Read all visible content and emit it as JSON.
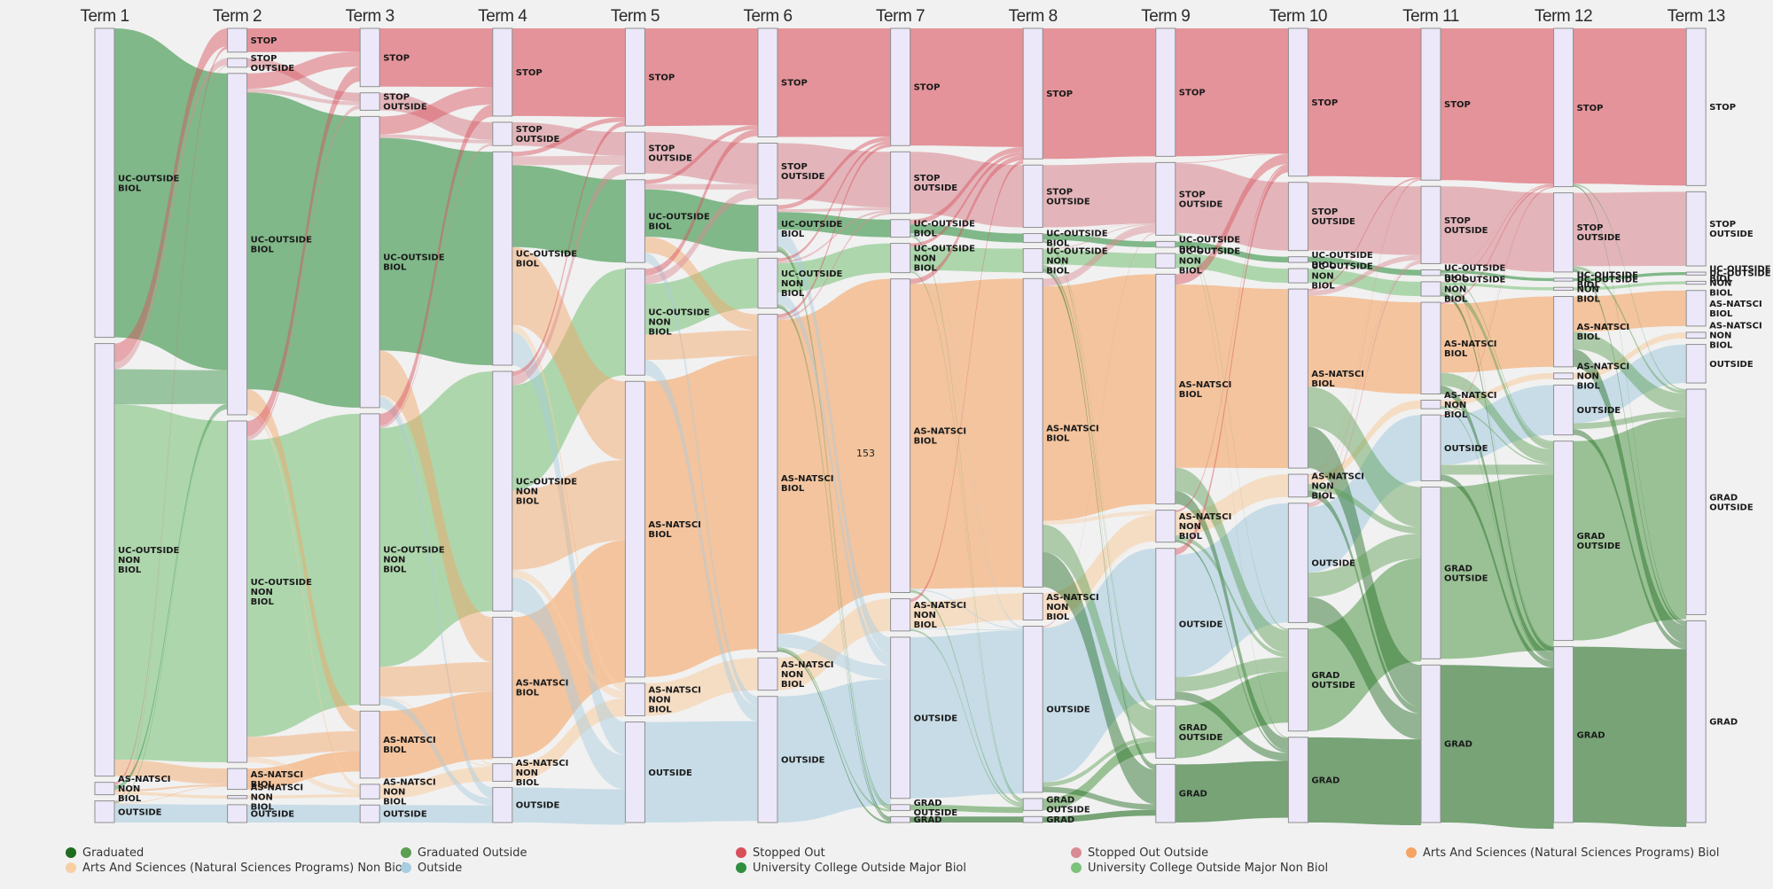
{
  "terms": [
    "Term 1",
    "Term 2",
    "Term 3",
    "Term 4",
    "Term 5",
    "Term 6",
    "Term 7",
    "Term 8",
    "Term 9",
    "Term 10",
    "Term 11",
    "Term 12",
    "Term 13"
  ],
  "categories": {
    "GRAD": {
      "label": "Graduated",
      "color": "#1f6b1f"
    },
    "GRADO": {
      "label": "Graduated Outside",
      "color": "#5c9e52"
    },
    "STOP": {
      "label": "Stopped Out",
      "color": "#d9505a"
    },
    "STOPO": {
      "label": "Stopped Out Outside",
      "color": "#d98a92"
    },
    "ASB": {
      "label": "Arts And Sciences (Natural Sciences Programs) Biol",
      "color": "#f5a463"
    },
    "ASNB": {
      "label": "Arts And Sciences (Natural Sciences Programs) Non Biol",
      "color": "#f8cfa4"
    },
    "OUT": {
      "label": "Outside",
      "color": "#a8cde0"
    },
    "UCB": {
      "label": "University College Outside Major Biol",
      "color": "#2f8f3e"
    },
    "UCNB": {
      "label": "University College Outside Major Non Biol",
      "color": "#7cc27a"
    }
  },
  "legend_order": [
    "GRAD",
    "GRADO",
    "STOP",
    "STOPO",
    "ASB",
    "ASNB",
    "OUT",
    "UCB",
    "UCNB"
  ],
  "node_labels": {
    "STOP": "STOP",
    "STOPO": "STOP\nOUTSIDE",
    "UCB": "UC-OUTSIDE\nBIOL",
    "UCNB": "UC-OUTSIDE\nNON\nBIOL",
    "ASB": "AS-NATSCI\nBIOL",
    "ASNB": "AS-NATSCI\nNON\nBIOL",
    "OUT": "OUTSIDE",
    "GRADO": "GRAD\nOUTSIDE",
    "GRAD": "GRAD"
  },
  "flow_value_label": "153",
  "chart_data": {
    "type": "sankey",
    "stages": [
      "Term 1",
      "Term 2",
      "Term 3",
      "Term 4",
      "Term 5",
      "Term 6",
      "Term 7",
      "Term 8",
      "Term 9",
      "Term 10",
      "Term 11",
      "Term 12",
      "Term 13"
    ],
    "node_order": [
      "STOP",
      "STOPO",
      "UCB",
      "UCNB",
      "ASB",
      "ASNB",
      "OUT",
      "GRADO",
      "GRAD"
    ],
    "nodes_per_term": [
      {
        "UCB": 100,
        "UCNB": 140,
        "ASNB": 4,
        "OUT": 7
      },
      {
        "STOP": 8,
        "STOPO": 3,
        "UCB": 115,
        "UCNB": 115,
        "ASB": 7,
        "ASNB": 1,
        "OUT": 6
      },
      {
        "STOP": 20,
        "STOPO": 6,
        "UCB": 100,
        "UCNB": 100,
        "ASB": 23,
        "ASNB": 5,
        "OUT": 6
      },
      {
        "STOP": 30,
        "STOPO": 8,
        "UCB": 73,
        "UCNB": 82,
        "ASB": 48,
        "ASNB": 6,
        "OUT": 12
      },
      {
        "STOP": 33,
        "STOPO": 14,
        "UCB": 28,
        "UCNB": 36,
        "ASB": 100,
        "ASNB": 11,
        "OUT": 34
      },
      {
        "STOP": 37,
        "STOPO": 19,
        "UCB": 16,
        "UCNB": 17,
        "ASB": 115,
        "ASNB": 11,
        "OUT": 43
      },
      {
        "STOP": 40,
        "STOPO": 21,
        "UCB": 6,
        "UCNB": 10,
        "ASB": 107,
        "ASNB": 11,
        "OUT": 55,
        "GRADO": 2,
        "GRAD": 2
      },
      {
        "STOP": 44,
        "STOPO": 21,
        "UCB": 3,
        "UCNB": 8,
        "ASB": 104,
        "ASNB": 9,
        "OUT": 56,
        "GRADO": 4,
        "GRAD": 2
      },
      {
        "STOP": 44,
        "STOPO": 25,
        "UCB": 2,
        "UCNB": 5,
        "ASB": 79,
        "ASNB": 11,
        "OUT": 52,
        "GRADO": 18,
        "GRAD": 20
      },
      {
        "STOP": 52,
        "STOPO": 24,
        "UCB": 2,
        "UCNB": 5,
        "ASB": 63,
        "ASNB": 8,
        "OUT": 42,
        "GRADO": 36,
        "GRAD": 30
      },
      {
        "STOP": 53,
        "STOPO": 27,
        "UCB": 2,
        "UCNB": 5,
        "ASB": 32,
        "ASNB": 3,
        "OUT": 23,
        "GRADO": 60,
        "GRAD": 55
      },
      {
        "STOP": 54,
        "STOPO": 27,
        "UCB": 1,
        "UCNB": 1,
        "ASB": 24,
        "ASNB": 2,
        "OUT": 17,
        "GRADO": 68,
        "GRAD": 60
      },
      {
        "STOP": 53,
        "STOPO": 25,
        "UCB": 1,
        "UCNB": 1,
        "ASB": 12,
        "ASNB": 2,
        "OUT": 13,
        "GRADO": 76,
        "GRAD": 68
      }
    ]
  }
}
